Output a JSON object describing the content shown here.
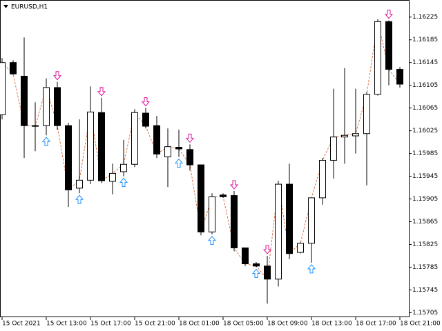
{
  "chart_data": {
    "type": "candlestick",
    "title": "EURUSD,H1",
    "categories": [
      "15 Oct 2021",
      null,
      null,
      null,
      "15 Oct 13:00",
      null,
      null,
      null,
      "15 Oct 17:00",
      null,
      null,
      null,
      "15 Oct 21:00",
      null,
      null,
      null,
      "18 Oct 01:00",
      null,
      null,
      null,
      "18 Oct 05:00",
      null,
      null,
      null,
      "18 Oct 09:00",
      null,
      null,
      null,
      "18 Oct 13:00",
      null,
      null,
      null,
      "18 Oct 17:00",
      null,
      null,
      null,
      "18 Oct 21:00"
    ],
    "open": [
      1.16053,
      1.16145,
      1.16121,
      1.16034,
      1.16034,
      1.16101,
      1.16034,
      1.15924,
      1.15938,
      1.16057,
      1.15936,
      1.15953,
      1.15966,
      1.16056,
      1.16034,
      1.15979,
      1.15996,
      1.15992,
      1.15965,
      1.15847,
      1.15912,
      1.15911,
      1.15819,
      1.15791,
      1.15787,
      1.15764,
      1.15931,
      1.15811,
      1.15827,
      1.15907,
      1.15973,
      1.16014,
      1.16016,
      1.1602,
      1.16089,
      1.16217,
      1.16133
    ],
    "high": [
      1.16153,
      1.16149,
      1.16189,
      1.16075,
      1.16117,
      1.16111,
      1.16039,
      1.16045,
      1.16103,
      1.16083,
      1.15967,
      1.16009,
      1.16063,
      1.16065,
      1.16051,
      1.16029,
      1.16027,
      1.16001,
      1.15965,
      1.15915,
      1.15915,
      1.15919,
      1.15819,
      1.15794,
      1.15805,
      1.15937,
      1.15967,
      1.15829,
      1.15907,
      1.15977,
      1.16099,
      1.16135,
      1.16099,
      1.16093,
      1.16221,
      1.16219,
      1.16137
    ],
    "low": [
      1.16045,
      1.16123,
      1.15977,
      1.15989,
      1.16017,
      1.16027,
      1.15891,
      1.15915,
      1.15931,
      1.15933,
      1.15913,
      1.15945,
      1.15961,
      1.16029,
      1.15977,
      1.15926,
      1.15979,
      1.15955,
      1.15841,
      1.15843,
      1.15907,
      1.15813,
      1.15787,
      1.15785,
      1.15721,
      1.15751,
      1.15799,
      1.15809,
      1.15793,
      1.15895,
      1.15941,
      1.15967,
      1.15985,
      1.15929,
      1.16087,
      1.16105,
      1.16101
    ],
    "close": [
      1.16145,
      1.16125,
      1.16034,
      1.16033,
      1.16101,
      1.16034,
      1.15921,
      1.15938,
      1.16058,
      1.15937,
      1.1595,
      1.15966,
      1.16057,
      1.16033,
      1.15984,
      1.15997,
      1.15993,
      1.15965,
      1.15847,
      1.15909,
      1.15909,
      1.15819,
      1.15791,
      1.15787,
      1.15764,
      1.15931,
      1.15809,
      1.15827,
      1.15907,
      1.15973,
      1.16014,
      1.16017,
      1.1602,
      1.16089,
      1.16217,
      1.16133,
      1.16107
    ],
    "up_color": "#ffffff",
    "down_color": "#000000",
    "buy_signals": [
      4,
      7,
      11,
      16,
      19,
      23,
      28
    ],
    "sell_signals": [
      5,
      9,
      13,
      17,
      21,
      24,
      35
    ],
    "buy_color": "#1e90ff",
    "sell_color": "#e0129a",
    "line_color": "#d2501e",
    "ylim": [
      1.15697,
      1.16255
    ],
    "yticks": [
      1.16225,
      1.16185,
      1.16145,
      1.16105,
      1.16065,
      1.16025,
      1.15985,
      1.15945,
      1.15905,
      1.15865,
      1.15825,
      1.15785,
      1.15745,
      1.15705
    ]
  }
}
